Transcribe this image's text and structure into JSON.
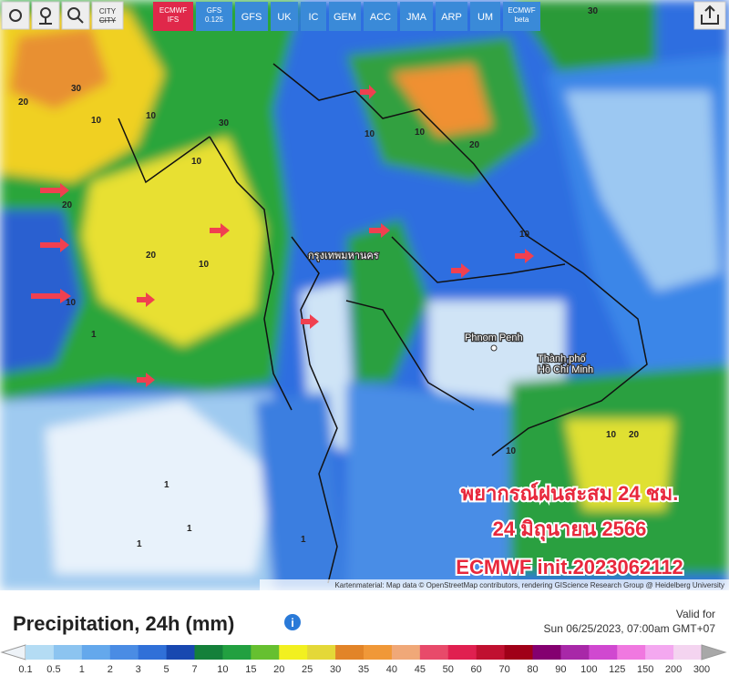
{
  "toolbar": {
    "city": "CITY",
    "models": [
      [
        "ECMWF",
        "IFS"
      ],
      [
        "GFS",
        "0.125"
      ],
      [
        "GFS"
      ],
      [
        "UK"
      ],
      [
        "IC"
      ],
      [
        "GEM"
      ],
      [
        "ACC"
      ],
      [
        "JMA"
      ],
      [
        "ARP"
      ],
      [
        "UM"
      ],
      [
        "ECMWF",
        "beta"
      ]
    ],
    "model_colors": [
      "#e0284a",
      "#3a8ad8",
      "#3a8ad8",
      "#3a8ad8",
      "#3a8ad8",
      "#3a8ad8",
      "#3a8ad8",
      "#3a8ad8",
      "#3a8ad8",
      "#3a8ad8",
      "#3a8ad8"
    ]
  },
  "map": {
    "places": [
      "Phnom Penh",
      "Thành phố",
      "Hồ Chí Minh",
      "กรุงเทพมหานคร"
    ],
    "contour_labels": [
      20,
      30,
      10,
      10,
      30,
      10,
      20,
      20,
      10,
      10,
      1,
      1,
      1,
      1,
      10,
      10,
      20,
      30,
      10,
      20,
      10,
      10,
      10,
      1
    ],
    "annotation": [
      "พยากรณ์ฝนสะสม 24 ชม.",
      "24 มิถุนายน 2566",
      "ECMWF init.2023062112"
    ],
    "attribution": "Kartenmaterial: Map data © OpenStreetMap contributors, rendering GIScience Research Group @ Heidelberg University"
  },
  "legend": {
    "title": "Precipitation, 24h (mm)",
    "valid_label": "Valid for",
    "valid_time": "Sun 06/25/2023, 07:00am GMT+07",
    "labels": [
      0.1,
      0.5,
      1,
      2,
      3,
      5,
      7,
      10,
      15,
      20,
      25,
      30,
      35,
      40,
      45,
      50,
      60,
      70,
      80,
      90,
      100,
      125,
      150,
      200,
      300
    ],
    "colors": [
      "#eef3f8",
      "#b4dcf4",
      "#8cc4f0",
      "#64a8ec",
      "#4a8ce4",
      "#3070d8",
      "#1848b0",
      "#14803a",
      "#22a040",
      "#66c030",
      "#f2f020",
      "#e4d838",
      "#e28428",
      "#f09838",
      "#f0a878",
      "#e84a6a",
      "#e02050",
      "#c01030",
      "#a00018",
      "#840070",
      "#a828a8",
      "#d048d0",
      "#f078e0",
      "#f4a8f0",
      "#f4d4f0",
      "#a8a8a8"
    ]
  }
}
